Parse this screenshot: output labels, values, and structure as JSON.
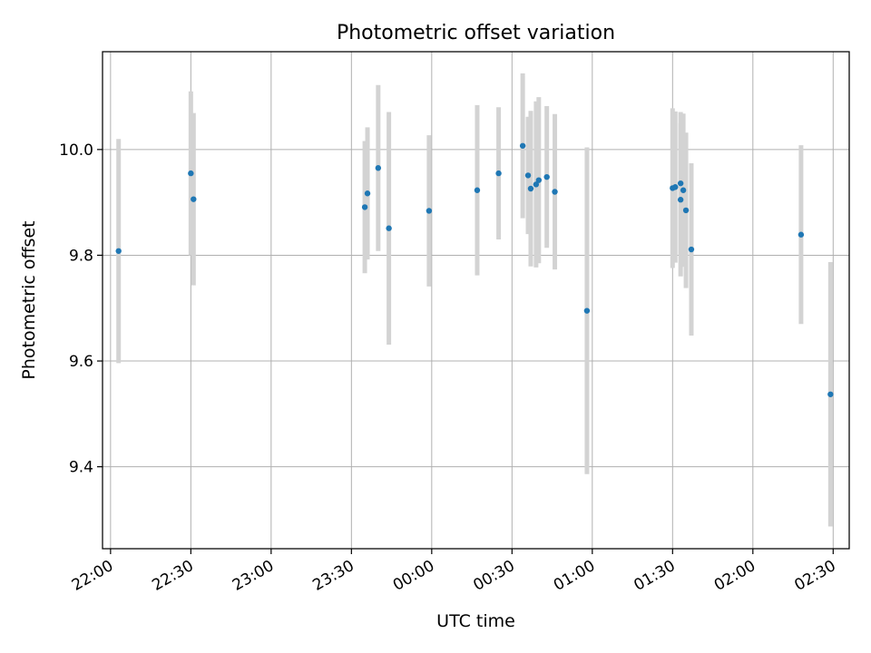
{
  "chart_data": {
    "type": "scatter",
    "title": "Photometric offset variation",
    "xlabel": "UTC time",
    "ylabel": "Photometric offset",
    "x_axis_type": "time",
    "xlim": [
      "21:57",
      "02:36"
    ],
    "ylim": [
      9.245,
      10.185
    ],
    "grid": true,
    "x_ticks": [
      "22:00",
      "22:30",
      "23:00",
      "23:30",
      "00:00",
      "00:30",
      "01:00",
      "01:30",
      "02:00",
      "02:30"
    ],
    "y_ticks": [
      9.4,
      9.6,
      9.8,
      10.0
    ],
    "y_tick_labels": [
      "9.4",
      "9.6",
      "9.8",
      "10.0"
    ],
    "colors": {
      "point": "#1f77b4",
      "error_bar": "#d3d3d3",
      "grid": "#b0b0b0"
    },
    "series": [
      {
        "points": [
          {
            "x": "22:03",
            "y": 9.808,
            "err": 0.212
          },
          {
            "x": "22:30",
            "y": 9.955,
            "err": 0.155
          },
          {
            "x": "22:31",
            "y": 9.906,
            "err": 0.163
          },
          {
            "x": "23:35",
            "y": 9.891,
            "err": 0.125
          },
          {
            "x": "23:36",
            "y": 9.917,
            "err": 0.125
          },
          {
            "x": "23:40",
            "y": 9.965,
            "err": 0.157
          },
          {
            "x": "23:44",
            "y": 9.851,
            "err": 0.22
          },
          {
            "x": "23:59",
            "y": 9.884,
            "err": 0.143
          },
          {
            "x": "00:17",
            "y": 9.923,
            "err": 0.161
          },
          {
            "x": "00:25",
            "y": 9.955,
            "err": 0.125
          },
          {
            "x": "00:34",
            "y": 10.007,
            "err": 0.137
          },
          {
            "x": "00:36",
            "y": 9.951,
            "err": 0.111
          },
          {
            "x": "00:37",
            "y": 9.926,
            "err": 0.147
          },
          {
            "x": "00:39",
            "y": 9.934,
            "err": 0.157
          },
          {
            "x": "00:40",
            "y": 9.942,
            "err": 0.157
          },
          {
            "x": "00:43",
            "y": 9.948,
            "err": 0.134
          },
          {
            "x": "00:46",
            "y": 9.92,
            "err": 0.147
          },
          {
            "x": "00:58",
            "y": 9.695,
            "err": 0.309
          },
          {
            "x": "01:30",
            "y": 9.927,
            "err": 0.151
          },
          {
            "x": "01:31",
            "y": 9.929,
            "err": 0.143
          },
          {
            "x": "01:33",
            "y": 9.936,
            "err": 0.135
          },
          {
            "x": "01:33",
            "y": 9.905,
            "err": 0.145
          },
          {
            "x": "01:34",
            "y": 9.923,
            "err": 0.145
          },
          {
            "x": "01:35",
            "y": 9.885,
            "err": 0.147
          },
          {
            "x": "01:37",
            "y": 9.811,
            "err": 0.163
          },
          {
            "x": "02:18",
            "y": 9.839,
            "err": 0.169
          },
          {
            "x": "02:29",
            "y": 9.537,
            "err": 0.25
          }
        ]
      }
    ]
  }
}
